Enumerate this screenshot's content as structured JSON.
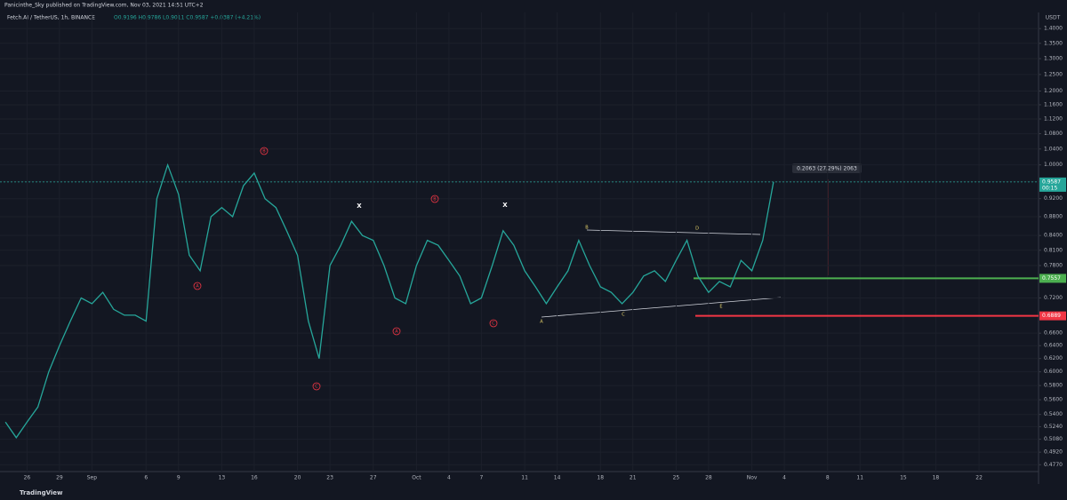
{
  "header": {
    "published": "Panicinthe_Sky published on TradingView.com, Nov 03, 2021 14:51 UTC+2",
    "symbol": "Fetch.AI / TetherUS, 1h, BINANCE",
    "ohlc": "O0.9196 H0.9786 L0.9011 C0.9587 +0.0387 (+4.21%)"
  },
  "footer": "TradingView",
  "chart_data": {
    "type": "line",
    "log_scale": true,
    "grid": true,
    "y_axis_label": "USDT",
    "measure_label": "0.2063 (27.29%) 2063",
    "annotations": [
      "A",
      "B",
      "C",
      "A",
      "B",
      "C",
      "X",
      "X",
      "A",
      "B",
      "C",
      "D",
      "E"
    ],
    "categories": [
      null,
      null,
      "26",
      null,
      null,
      "29",
      null,
      null,
      "Sep",
      null,
      null,
      null,
      null,
      "6",
      null,
      null,
      "9",
      null,
      null,
      null,
      "13",
      null,
      null,
      "16",
      null,
      null,
      null,
      "20",
      null,
      null,
      "23",
      null,
      null,
      null,
      "27",
      null,
      null,
      null,
      "Oct",
      null,
      null,
      "4",
      null,
      null,
      "7",
      null,
      null,
      null,
      "11",
      null,
      null,
      "14",
      null,
      null,
      null,
      "18",
      null,
      null,
      "21",
      null,
      null,
      null,
      "25",
      null,
      null,
      "28",
      null,
      null,
      null,
      "Nov",
      null,
      null,
      "4",
      null,
      null,
      null,
      "8",
      null,
      null,
      "11",
      null,
      null,
      null,
      "15",
      null,
      null,
      "18",
      null,
      null,
      null,
      "22",
      null,
      null,
      null,
      null,
      null
    ],
    "series": [
      {
        "name": "Fetch.AI / TetherUS",
        "color": "#26a69a",
        "values": [
          0.53,
          0.51,
          0.53,
          0.55,
          0.6,
          0.64,
          0.68,
          0.72,
          0.71,
          0.73,
          0.7,
          0.69,
          0.69,
          0.68,
          0.92,
          1.0,
          0.93,
          0.8,
          0.77,
          0.88,
          0.9,
          0.88,
          0.95,
          0.98,
          0.92,
          0.9,
          0.85,
          0.8,
          0.68,
          0.62,
          0.78,
          0.82,
          0.87,
          0.84,
          0.83,
          0.78,
          0.72,
          0.71,
          0.78,
          0.83,
          0.82,
          0.79,
          0.76,
          0.71,
          0.72,
          0.78,
          0.85,
          0.82,
          0.77,
          0.74,
          0.71,
          0.74,
          0.77,
          0.83,
          0.78,
          0.74,
          0.73,
          0.71,
          0.73,
          0.76,
          0.77,
          0.75,
          0.79,
          0.83,
          0.76,
          0.73,
          0.75,
          0.74,
          0.79,
          0.77,
          0.83,
          0.9587,
          null,
          null,
          null,
          null,
          null,
          null,
          null,
          null,
          null,
          null,
          null,
          null,
          null,
          null,
          null,
          null,
          null,
          null,
          null,
          null,
          null,
          null,
          null,
          null
        ]
      }
    ],
    "hlines": [
      {
        "value": 0.9587,
        "label": "0.9587",
        "color": "#26a69a",
        "sublabel": "00:15"
      },
      {
        "value": 0.7557,
        "label": "0.7557",
        "color": "#4caf50"
      },
      {
        "value": 0.6889,
        "label": "0.6889",
        "color": "#f23645"
      }
    ],
    "ylim": [
      0.469,
      1.457
    ],
    "yticks": [
      {
        "value": 1.4,
        "label": "1.4000"
      },
      {
        "value": 1.35,
        "label": "1.3500"
      },
      {
        "value": 1.3,
        "label": "1.3000"
      },
      {
        "value": 1.25,
        "label": "1.2500"
      },
      {
        "value": 1.2,
        "label": "1.2000"
      },
      {
        "value": 1.16,
        "label": "1.1600"
      },
      {
        "value": 1.12,
        "label": "1.1200"
      },
      {
        "value": 1.08,
        "label": "1.0800"
      },
      {
        "value": 1.04,
        "label": "1.0400"
      },
      {
        "value": 1.0,
        "label": "1.0000"
      },
      {
        "value": 0.96,
        "label": "0.9600"
      },
      {
        "value": 0.92,
        "label": "0.9200"
      },
      {
        "value": 0.88,
        "label": "0.8800"
      },
      {
        "value": 0.84,
        "label": "0.8400"
      },
      {
        "value": 0.81,
        "label": "0.8100"
      },
      {
        "value": 0.78,
        "label": "0.7800"
      },
      {
        "value": 0.72,
        "label": "0.7200"
      },
      {
        "value": 0.66,
        "label": "0.6600"
      },
      {
        "value": 0.64,
        "label": "0.6400"
      },
      {
        "value": 0.62,
        "label": "0.6200"
      },
      {
        "value": 0.6,
        "label": "0.6000"
      },
      {
        "value": 0.58,
        "label": "0.5800"
      },
      {
        "value": 0.56,
        "label": "0.5600"
      },
      {
        "value": 0.54,
        "label": "0.5400"
      },
      {
        "value": 0.524,
        "label": "0.5240"
      },
      {
        "value": 0.508,
        "label": "0.5080"
      },
      {
        "value": 0.492,
        "label": "0.4920"
      },
      {
        "value": 0.477,
        "label": "0.4770"
      }
    ]
  }
}
